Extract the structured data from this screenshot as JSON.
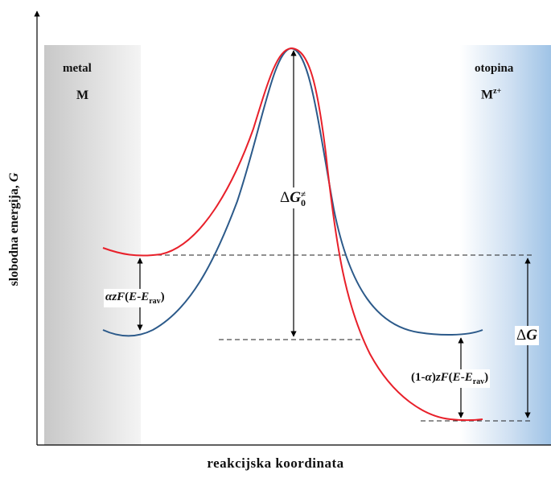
{
  "axes": {
    "y_label": "slobodna energija, ",
    "y_symbol": "G",
    "x_label": "reakcijska koordinata"
  },
  "left_region": {
    "title": "metal",
    "species": "M"
  },
  "right_region": {
    "title": "otopina",
    "species": "M",
    "species_sup": "z+"
  },
  "annotations": {
    "delta_g0": {
      "delta": "Δ",
      "symbol": "G",
      "sup": "≠",
      "sub": "0"
    },
    "delta_g": {
      "delta": "Δ",
      "symbol": "G"
    },
    "left_shift": {
      "alpha": "α",
      "z": "z",
      "F": "F",
      "open": "(",
      "E": "E",
      "minus": "-",
      "E2": "E",
      "sub": "rav",
      "close": ")"
    },
    "right_shift": {
      "prefix": "(1-",
      "alpha": "α",
      "mid": ")",
      "z": "z",
      "F": "F",
      "open": "(",
      "E": "E",
      "minus": "-",
      "E2": "E",
      "sub": "rav",
      "close": ")"
    }
  },
  "colors": {
    "curve_red": "#e8202a",
    "curve_blue": "#2c5a8a",
    "metal_band": "#d9d9d9",
    "solution_band": "#a9c9e8"
  }
}
